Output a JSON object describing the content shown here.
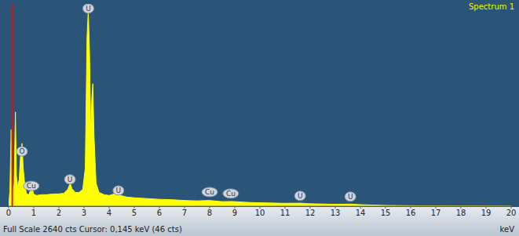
{
  "chart_data": {
    "type": "area",
    "title": "Spectrum 1",
    "x_label": "keV",
    "footer": "Full Scale 2640 cts Cursor: 0,145 keV (46 cts)",
    "x": [
      0,
      0.05,
      0.1,
      0.13,
      0.18,
      0.22,
      0.27,
      0.31,
      0.36,
      0.42,
      0.48,
      0.53,
      0.58,
      0.65,
      0.72,
      0.8,
      0.88,
      0.93,
      0.99,
      1.1,
      1.3,
      1.5,
      1.8,
      2.0,
      2.2,
      2.35,
      2.45,
      2.52,
      2.65,
      2.8,
      2.95,
      3.05,
      3.12,
      3.17,
      3.22,
      3.27,
      3.31,
      3.35,
      3.4,
      3.48,
      3.6,
      3.8,
      4.0,
      4.2,
      4.33,
      4.45,
      4.7,
      5,
      5.5,
      6,
      6.5,
      7,
      7.5,
      8.0,
      8.5,
      8.9,
      9.5,
      10,
      11,
      11.6,
      12,
      13,
      13.6,
      14,
      14.5,
      15,
      16,
      17,
      18,
      19,
      20
    ],
    "values": [
      0,
      200,
      1000,
      400,
      150,
      300,
      1230,
      400,
      250,
      350,
      700,
      820,
      500,
      250,
      160,
      150,
      220,
      260,
      160,
      140,
      150,
      150,
      160,
      160,
      170,
      220,
      300,
      230,
      180,
      180,
      220,
      500,
      2200,
      2560,
      2000,
      900,
      1400,
      1600,
      900,
      300,
      180,
      150,
      140,
      160,
      200,
      140,
      120,
      110,
      100,
      90,
      85,
      75,
      70,
      75,
      60,
      62,
      50,
      45,
      38,
      40,
      32,
      25,
      28,
      20,
      15,
      10,
      6,
      4,
      3,
      2,
      1
    ],
    "color": "#ffff00",
    "xlim": [
      0,
      20
    ],
    "xticks": [
      0,
      1,
      2,
      3,
      4,
      5,
      6,
      7,
      8,
      9,
      10,
      11,
      12,
      13,
      14,
      15,
      16,
      17,
      18,
      19,
      20
    ],
    "ylim": [
      0,
      2640
    ],
    "tick_labels": "x",
    "grid": false,
    "cursor": 0.145,
    "annotations": [
      {
        "text": "U",
        "x": 3.17,
        "y": 2580
      },
      {
        "text": "O",
        "x": 0.53,
        "y": 715
      },
      {
        "text": "Cu",
        "x": 0.9,
        "y": 265
      },
      {
        "text": "U",
        "x": 2.44,
        "y": 350
      },
      {
        "text": "U",
        "x": 4.37,
        "y": 205
      },
      {
        "text": "Cu",
        "x": 8.0,
        "y": 185
      },
      {
        "text": "Cu",
        "x": 8.84,
        "y": 165
      },
      {
        "text": "U",
        "x": 11.6,
        "y": 135
      },
      {
        "text": "U",
        "x": 13.6,
        "y": 125
      }
    ]
  }
}
